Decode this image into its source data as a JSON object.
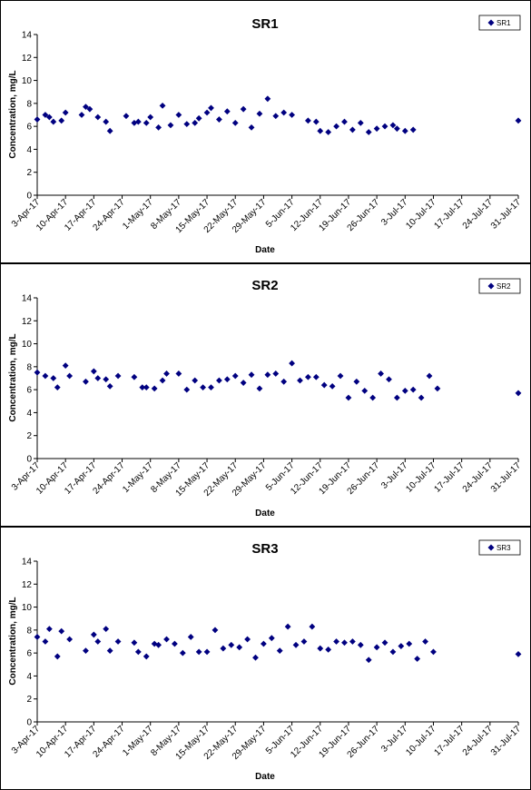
{
  "chart_data": [
    {
      "type": "scatter",
      "title": "SR1",
      "xlabel": "Date",
      "ylabel": "Concentration, mg/L",
      "ylim": [
        0,
        14
      ],
      "yticks": [
        "0",
        "2",
        "4",
        "6",
        "8",
        "10",
        "12",
        "14"
      ],
      "xlim": [
        "2017-04-03",
        "2017-07-31"
      ],
      "xticks": [
        "3-Apr-17",
        "10-Apr-17",
        "17-Apr-17",
        "24-Apr-17",
        "1-May-17",
        "8-May-17",
        "15-May-17",
        "22-May-17",
        "29-May-17",
        "5-Jun-17",
        "12-Jun-17",
        "19-Jun-17",
        "26-Jun-17",
        "3-Jul-17",
        "10-Jul-17",
        "17-Jul-17",
        "24-Jul-17",
        "31-Jul-17"
      ],
      "grid": false,
      "legend": "top-right",
      "marker_color": "#000080",
      "series": [
        {
          "name": "SR1",
          "points": [
            [
              "2017-04-03",
              6.6
            ],
            [
              "2017-04-05",
              7.0
            ],
            [
              "2017-04-06",
              6.8
            ],
            [
              "2017-04-07",
              6.4
            ],
            [
              "2017-04-09",
              6.5
            ],
            [
              "2017-04-10",
              7.2
            ],
            [
              "2017-04-14",
              7.0
            ],
            [
              "2017-04-15",
              7.7
            ],
            [
              "2017-04-16",
              7.5
            ],
            [
              "2017-04-18",
              6.8
            ],
            [
              "2017-04-20",
              6.4
            ],
            [
              "2017-04-21",
              5.6
            ],
            [
              "2017-04-25",
              6.9
            ],
            [
              "2017-04-27",
              6.3
            ],
            [
              "2017-04-28",
              6.4
            ],
            [
              "2017-04-30",
              6.3
            ],
            [
              "2017-05-01",
              6.8
            ],
            [
              "2017-05-03",
              5.9
            ],
            [
              "2017-05-04",
              7.8
            ],
            [
              "2017-05-06",
              6.1
            ],
            [
              "2017-05-08",
              7.0
            ],
            [
              "2017-05-10",
              6.2
            ],
            [
              "2017-05-12",
              6.3
            ],
            [
              "2017-05-13",
              6.7
            ],
            [
              "2017-05-15",
              7.2
            ],
            [
              "2017-05-16",
              7.6
            ],
            [
              "2017-05-18",
              6.6
            ],
            [
              "2017-05-20",
              7.3
            ],
            [
              "2017-05-22",
              6.3
            ],
            [
              "2017-05-24",
              7.5
            ],
            [
              "2017-05-26",
              5.9
            ],
            [
              "2017-05-28",
              7.1
            ],
            [
              "2017-05-30",
              8.4
            ],
            [
              "2017-06-01",
              6.9
            ],
            [
              "2017-06-03",
              7.2
            ],
            [
              "2017-06-05",
              7.0
            ],
            [
              "2017-06-09",
              6.5
            ],
            [
              "2017-06-11",
              6.4
            ],
            [
              "2017-06-12",
              5.6
            ],
            [
              "2017-06-14",
              5.5
            ],
            [
              "2017-06-16",
              6.0
            ],
            [
              "2017-06-18",
              6.4
            ],
            [
              "2017-06-20",
              5.7
            ],
            [
              "2017-06-22",
              6.3
            ],
            [
              "2017-06-24",
              5.5
            ],
            [
              "2017-06-26",
              5.8
            ],
            [
              "2017-06-28",
              6.0
            ],
            [
              "2017-06-30",
              6.1
            ],
            [
              "2017-07-01",
              5.8
            ],
            [
              "2017-07-03",
              5.6
            ],
            [
              "2017-07-05",
              5.7
            ],
            [
              "2017-07-31",
              6.5
            ]
          ]
        }
      ]
    },
    {
      "type": "scatter",
      "title": "SR2",
      "xlabel": "Date",
      "ylabel": "Concentration, mg/L",
      "ylim": [
        0,
        14
      ],
      "yticks": [
        "0",
        "2",
        "4",
        "6",
        "8",
        "10",
        "12",
        "14"
      ],
      "xlim": [
        "2017-04-03",
        "2017-07-31"
      ],
      "xticks": [
        "3-Apr-17",
        "10-Apr-17",
        "17-Apr-17",
        "24-Apr-17",
        "1-May-17",
        "8-May-17",
        "15-May-17",
        "22-May-17",
        "29-May-17",
        "5-Jun-17",
        "12-Jun-17",
        "19-Jun-17",
        "26-Jun-17",
        "3-Jul-17",
        "10-Jul-17",
        "17-Jul-17",
        "24-Jul-17",
        "31-Jul-17"
      ],
      "grid": false,
      "legend": "top-right",
      "marker_color": "#000080",
      "series": [
        {
          "name": "SR2",
          "points": [
            [
              "2017-04-03",
              7.5
            ],
            [
              "2017-04-05",
              7.2
            ],
            [
              "2017-04-07",
              7.0
            ],
            [
              "2017-04-08",
              6.2
            ],
            [
              "2017-04-10",
              8.1
            ],
            [
              "2017-04-11",
              7.2
            ],
            [
              "2017-04-15",
              6.7
            ],
            [
              "2017-04-17",
              7.6
            ],
            [
              "2017-04-18",
              7.0
            ],
            [
              "2017-04-20",
              6.9
            ],
            [
              "2017-04-21",
              6.3
            ],
            [
              "2017-04-23",
              7.2
            ],
            [
              "2017-04-27",
              7.1
            ],
            [
              "2017-04-29",
              6.2
            ],
            [
              "2017-04-30",
              6.2
            ],
            [
              "2017-05-02",
              6.1
            ],
            [
              "2017-05-04",
              6.8
            ],
            [
              "2017-05-05",
              7.4
            ],
            [
              "2017-05-08",
              7.4
            ],
            [
              "2017-05-10",
              6.0
            ],
            [
              "2017-05-12",
              6.8
            ],
            [
              "2017-05-14",
              6.2
            ],
            [
              "2017-05-16",
              6.2
            ],
            [
              "2017-05-18",
              6.8
            ],
            [
              "2017-05-20",
              6.9
            ],
            [
              "2017-05-22",
              7.2
            ],
            [
              "2017-05-24",
              6.6
            ],
            [
              "2017-05-26",
              7.3
            ],
            [
              "2017-05-28",
              6.1
            ],
            [
              "2017-05-30",
              7.3
            ],
            [
              "2017-06-01",
              7.4
            ],
            [
              "2017-06-03",
              6.7
            ],
            [
              "2017-06-05",
              8.3
            ],
            [
              "2017-06-07",
              6.8
            ],
            [
              "2017-06-09",
              7.1
            ],
            [
              "2017-06-11",
              7.1
            ],
            [
              "2017-06-13",
              6.4
            ],
            [
              "2017-06-15",
              6.3
            ],
            [
              "2017-06-17",
              7.2
            ],
            [
              "2017-06-19",
              5.3
            ],
            [
              "2017-06-21",
              6.7
            ],
            [
              "2017-06-23",
              5.9
            ],
            [
              "2017-06-25",
              5.3
            ],
            [
              "2017-06-27",
              7.4
            ],
            [
              "2017-06-29",
              6.9
            ],
            [
              "2017-07-01",
              5.3
            ],
            [
              "2017-07-03",
              5.9
            ],
            [
              "2017-07-05",
              6.0
            ],
            [
              "2017-07-07",
              5.3
            ],
            [
              "2017-07-09",
              7.2
            ],
            [
              "2017-07-11",
              6.1
            ],
            [
              "2017-07-31",
              5.7
            ]
          ]
        }
      ]
    },
    {
      "type": "scatter",
      "title": "SR3",
      "xlabel": "Date",
      "ylabel": "Concentration, mg/L",
      "ylim": [
        0,
        14
      ],
      "yticks": [
        "0",
        "2",
        "4",
        "6",
        "8",
        "10",
        "12",
        "14"
      ],
      "xlim": [
        "2017-04-03",
        "2017-07-31"
      ],
      "xticks": [
        "3-Apr-17",
        "10-Apr-17",
        "17-Apr-17",
        "24-Apr-17",
        "1-May-17",
        "8-May-17",
        "15-May-17",
        "22-May-17",
        "29-May-17",
        "5-Jun-17",
        "12-Jun-17",
        "19-Jun-17",
        "26-Jun-17",
        "3-Jul-17",
        "10-Jul-17",
        "17-Jul-17",
        "24-Jul-17",
        "31-Jul-17"
      ],
      "grid": false,
      "legend": "top-right",
      "marker_color": "#000080",
      "series": [
        {
          "name": "SR3",
          "points": [
            [
              "2017-04-03",
              7.4
            ],
            [
              "2017-04-05",
              7.0
            ],
            [
              "2017-04-06",
              8.1
            ],
            [
              "2017-04-08",
              5.7
            ],
            [
              "2017-04-09",
              7.9
            ],
            [
              "2017-04-11",
              7.2
            ],
            [
              "2017-04-15",
              6.2
            ],
            [
              "2017-04-17",
              7.6
            ],
            [
              "2017-04-18",
              7.0
            ],
            [
              "2017-04-20",
              8.1
            ],
            [
              "2017-04-21",
              6.2
            ],
            [
              "2017-04-23",
              7.0
            ],
            [
              "2017-04-27",
              6.9
            ],
            [
              "2017-04-28",
              6.1
            ],
            [
              "2017-04-30",
              5.7
            ],
            [
              "2017-05-02",
              6.8
            ],
            [
              "2017-05-03",
              6.7
            ],
            [
              "2017-05-05",
              7.2
            ],
            [
              "2017-05-07",
              6.8
            ],
            [
              "2017-05-09",
              6.0
            ],
            [
              "2017-05-11",
              7.4
            ],
            [
              "2017-05-13",
              6.1
            ],
            [
              "2017-05-15",
              6.1
            ],
            [
              "2017-05-17",
              8.0
            ],
            [
              "2017-05-19",
              6.4
            ],
            [
              "2017-05-21",
              6.7
            ],
            [
              "2017-05-23",
              6.5
            ],
            [
              "2017-05-25",
              7.2
            ],
            [
              "2017-05-27",
              5.6
            ],
            [
              "2017-05-29",
              6.8
            ],
            [
              "2017-05-31",
              7.3
            ],
            [
              "2017-06-02",
              6.2
            ],
            [
              "2017-06-04",
              8.3
            ],
            [
              "2017-06-06",
              6.7
            ],
            [
              "2017-06-08",
              7.0
            ],
            [
              "2017-06-10",
              8.3
            ],
            [
              "2017-06-12",
              6.4
            ],
            [
              "2017-06-14",
              6.3
            ],
            [
              "2017-06-16",
              7.0
            ],
            [
              "2017-06-18",
              6.9
            ],
            [
              "2017-06-20",
              7.0
            ],
            [
              "2017-06-22",
              6.7
            ],
            [
              "2017-06-24",
              5.4
            ],
            [
              "2017-06-26",
              6.5
            ],
            [
              "2017-06-28",
              6.9
            ],
            [
              "2017-06-30",
              6.1
            ],
            [
              "2017-07-02",
              6.6
            ],
            [
              "2017-07-04",
              6.8
            ],
            [
              "2017-07-06",
              5.5
            ],
            [
              "2017-07-08",
              7.0
            ],
            [
              "2017-07-10",
              6.1
            ],
            [
              "2017-07-31",
              5.9
            ]
          ]
        }
      ]
    }
  ]
}
